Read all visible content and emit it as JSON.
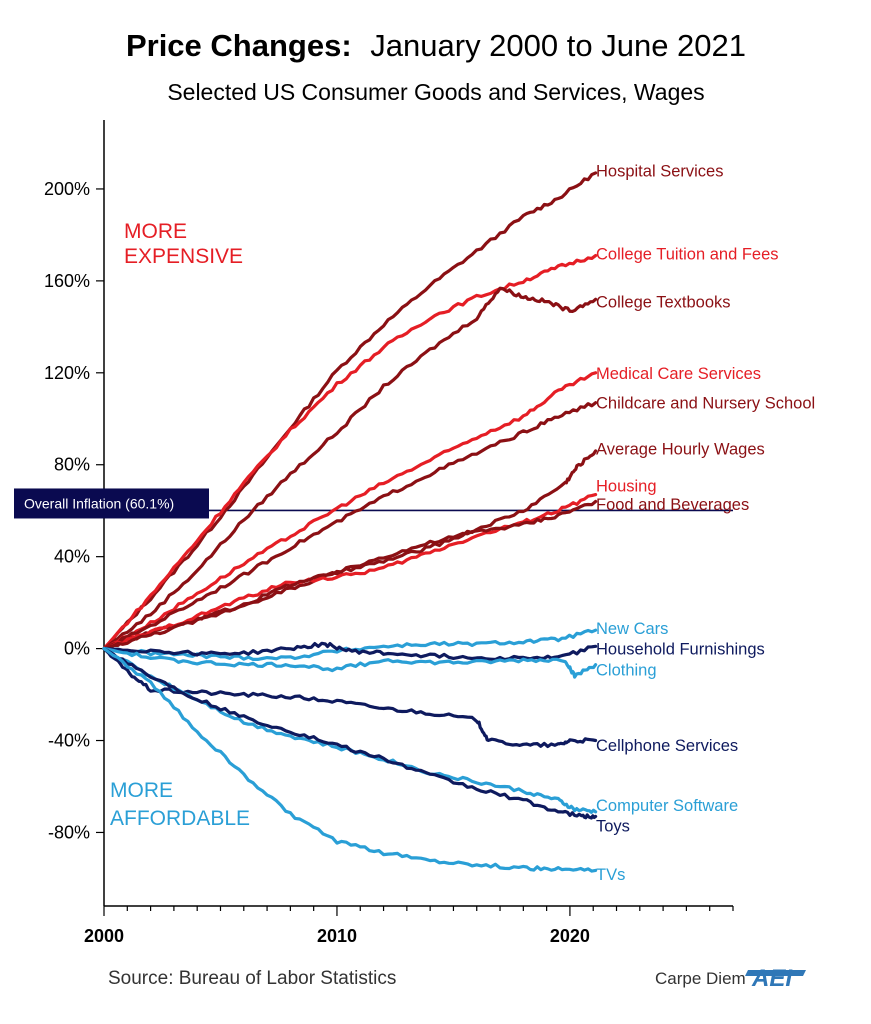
{
  "chart_data": {
    "type": "line",
    "title_bold": "Price Changes:",
    "title_rest": "January 2000 to June 2021",
    "subtitle": "Selected US Consumer Goods and Services, Wages",
    "xlim": [
      2000,
      2027
    ],
    "ylim": [
      -112,
      230
    ],
    "y_ticks": [
      200,
      160,
      120,
      80,
      40,
      0,
      -40,
      -80
    ],
    "y_tick_labels": [
      "200%",
      "160%",
      "120%",
      "80%",
      "40%",
      "0%",
      "-40%",
      "-80%"
    ],
    "x_ticks": [
      2000,
      2010,
      2020
    ],
    "x_tick_labels": [
      "2000",
      "2010",
      "2020"
    ],
    "grid": false,
    "reference_line": {
      "label": "Overall Inflation (60.1%)",
      "value": 60.1,
      "color": "#0a0a50"
    },
    "annotations": {
      "more_expensive": "MORE\nEXPENSIVE",
      "more_affordable": "MORE\nAFFORDABLE"
    },
    "series": [
      {
        "name": "Hospital Services",
        "color": "#8b1014",
        "points": [
          [
            2000,
            0
          ],
          [
            2002,
            22
          ],
          [
            2004,
            45
          ],
          [
            2006,
            70
          ],
          [
            2008,
            96
          ],
          [
            2010,
            121
          ],
          [
            2012,
            141
          ],
          [
            2014,
            158
          ],
          [
            2016,
            173
          ],
          [
            2018,
            188
          ],
          [
            2019.5,
            196
          ],
          [
            2021.1,
            207
          ]
        ]
      },
      {
        "name": "College Tuition and Fees",
        "color": "#e51e25",
        "points": [
          [
            2000,
            0
          ],
          [
            2002,
            23
          ],
          [
            2004,
            47
          ],
          [
            2006,
            72
          ],
          [
            2008,
            95
          ],
          [
            2010,
            115
          ],
          [
            2012,
            131
          ],
          [
            2014,
            144
          ],
          [
            2016,
            153
          ],
          [
            2018,
            160
          ],
          [
            2019.5,
            166
          ],
          [
            2021.1,
            171
          ]
        ]
      },
      {
        "name": "College Textbooks",
        "color": "#8b1014",
        "points": [
          [
            2000,
            0
          ],
          [
            2002,
            15
          ],
          [
            2004,
            34
          ],
          [
            2006,
            56
          ],
          [
            2008,
            76
          ],
          [
            2010,
            94
          ],
          [
            2012,
            114
          ],
          [
            2014,
            130
          ],
          [
            2016,
            144
          ],
          [
            2017,
            157
          ],
          [
            2018,
            153
          ],
          [
            2019,
            151
          ],
          [
            2020,
            147
          ],
          [
            2021.1,
            152
          ]
        ]
      },
      {
        "name": "Medical Care Services",
        "color": "#e51e25",
        "points": [
          [
            2000,
            0
          ],
          [
            2002,
            11
          ],
          [
            2004,
            24
          ],
          [
            2006,
            37
          ],
          [
            2008,
            49
          ],
          [
            2010,
            61
          ],
          [
            2012,
            72
          ],
          [
            2014,
            82
          ],
          [
            2016,
            92
          ],
          [
            2018,
            101
          ],
          [
            2019.5,
            112
          ],
          [
            2021.1,
            120
          ]
        ]
      },
      {
        "name": "Childcare and Nursery School",
        "color": "#8b1014",
        "points": [
          [
            2000,
            0
          ],
          [
            2002,
            10
          ],
          [
            2004,
            21
          ],
          [
            2006,
            32
          ],
          [
            2008,
            44
          ],
          [
            2010,
            55
          ],
          [
            2012,
            66
          ],
          [
            2014,
            76
          ],
          [
            2016,
            85
          ],
          [
            2018,
            94
          ],
          [
            2019.5,
            101
          ],
          [
            2021.1,
            107
          ]
        ]
      },
      {
        "name": "Average Hourly Wages",
        "color": "#8b1014",
        "points": [
          [
            2000,
            0
          ],
          [
            2002,
            7
          ],
          [
            2004,
            13
          ],
          [
            2006,
            19
          ],
          [
            2008,
            26
          ],
          [
            2010,
            33
          ],
          [
            2012,
            38
          ],
          [
            2014,
            44
          ],
          [
            2016,
            52
          ],
          [
            2018,
            60
          ],
          [
            2019.8,
            72
          ],
          [
            2020.3,
            79
          ],
          [
            2021.1,
            86
          ]
        ]
      },
      {
        "name": "Housing",
        "color": "#e51e25",
        "points": [
          [
            2000,
            0
          ],
          [
            2002,
            7
          ],
          [
            2004,
            14
          ],
          [
            2006,
            22
          ],
          [
            2008,
            29
          ],
          [
            2010,
            31
          ],
          [
            2012,
            35
          ],
          [
            2014,
            42
          ],
          [
            2016,
            49
          ],
          [
            2018,
            55
          ],
          [
            2019.5,
            60
          ],
          [
            2021.1,
            67
          ]
        ]
      },
      {
        "name": "Food and Beverages",
        "color": "#8b1014",
        "points": [
          [
            2000,
            0
          ],
          [
            2002,
            6
          ],
          [
            2004,
            12
          ],
          [
            2006,
            19
          ],
          [
            2008,
            28
          ],
          [
            2010,
            33
          ],
          [
            2012,
            40
          ],
          [
            2014,
            46
          ],
          [
            2016,
            51
          ],
          [
            2018,
            54
          ],
          [
            2019.5,
            58
          ],
          [
            2021.1,
            64
          ]
        ]
      },
      {
        "name": "New Cars",
        "color": "#2a9fd6",
        "points": [
          [
            2000,
            0
          ],
          [
            2002,
            -2
          ],
          [
            2004,
            -3
          ],
          [
            2006,
            -4
          ],
          [
            2008,
            -4
          ],
          [
            2010,
            -1
          ],
          [
            2012,
            1
          ],
          [
            2014,
            2
          ],
          [
            2016,
            2
          ],
          [
            2018,
            3
          ],
          [
            2019.5,
            4
          ],
          [
            2021.1,
            8
          ]
        ]
      },
      {
        "name": "Household Furnishings",
        "color": "#0e1a5e",
        "points": [
          [
            2000,
            0
          ],
          [
            2002,
            -1
          ],
          [
            2004,
            -2
          ],
          [
            2006,
            -2
          ],
          [
            2008,
            0
          ],
          [
            2009.5,
            2
          ],
          [
            2010.5,
            -1
          ],
          [
            2012,
            -2
          ],
          [
            2014,
            -3
          ],
          [
            2016,
            -4
          ],
          [
            2018,
            -4
          ],
          [
            2019.5,
            -4
          ],
          [
            2021.1,
            1
          ]
        ]
      },
      {
        "name": "Clothing",
        "color": "#2a9fd6",
        "points": [
          [
            2000,
            0
          ],
          [
            2002,
            -4
          ],
          [
            2004,
            -6
          ],
          [
            2006,
            -7
          ],
          [
            2008,
            -7
          ],
          [
            2010,
            -9
          ],
          [
            2012,
            -5
          ],
          [
            2014,
            -6
          ],
          [
            2016,
            -6
          ],
          [
            2018,
            -5
          ],
          [
            2019.8,
            -5
          ],
          [
            2020.2,
            -12
          ],
          [
            2021.1,
            -7
          ]
        ]
      },
      {
        "name": "Cellphone Services",
        "color": "#0e1a5e",
        "points": [
          [
            2000,
            0
          ],
          [
            2001,
            -10
          ],
          [
            2002,
            -18
          ],
          [
            2004,
            -19
          ],
          [
            2006,
            -20
          ],
          [
            2008,
            -21
          ],
          [
            2010,
            -23
          ],
          [
            2012,
            -26
          ],
          [
            2014,
            -28
          ],
          [
            2016,
            -31
          ],
          [
            2016.5,
            -40
          ],
          [
            2018,
            -42
          ],
          [
            2019.5,
            -42
          ],
          [
            2020,
            -40
          ],
          [
            2021.1,
            -40
          ]
        ]
      },
      {
        "name": "Computer Software",
        "color": "#2a9fd6",
        "points": [
          [
            2000,
            0
          ],
          [
            2002,
            -12
          ],
          [
            2004,
            -22
          ],
          [
            2006,
            -32
          ],
          [
            2008,
            -38
          ],
          [
            2010,
            -43
          ],
          [
            2012,
            -48
          ],
          [
            2014,
            -54
          ],
          [
            2016,
            -58
          ],
          [
            2018,
            -62
          ],
          [
            2019.5,
            -66
          ],
          [
            2020.2,
            -70
          ],
          [
            2021.1,
            -71
          ]
        ]
      },
      {
        "name": "Toys",
        "color": "#0e1a5e",
        "points": [
          [
            2000,
            0
          ],
          [
            2002,
            -12
          ],
          [
            2004,
            -22
          ],
          [
            2006,
            -30
          ],
          [
            2008,
            -36
          ],
          [
            2010,
            -42
          ],
          [
            2012,
            -48
          ],
          [
            2014,
            -55
          ],
          [
            2016,
            -61
          ],
          [
            2018,
            -66
          ],
          [
            2019.5,
            -71
          ],
          [
            2020.5,
            -73
          ],
          [
            2021.1,
            -73
          ]
        ]
      },
      {
        "name": "TVs",
        "color": "#2a9fd6",
        "points": [
          [
            2000,
            0
          ],
          [
            2002,
            -15
          ],
          [
            2004,
            -36
          ],
          [
            2006,
            -55
          ],
          [
            2008,
            -72
          ],
          [
            2010,
            -84
          ],
          [
            2012,
            -89
          ],
          [
            2014,
            -92
          ],
          [
            2016,
            -94
          ],
          [
            2018,
            -95.5
          ],
          [
            2019.5,
            -96
          ],
          [
            2021.1,
            -96.5
          ]
        ]
      }
    ],
    "series_labels": [
      {
        "text": "Hospital Services",
        "color": "#8b1014",
        "y_value": 208
      },
      {
        "text": "College Tuition and Fees",
        "color": "#e51e25",
        "y_value": 172
      },
      {
        "text": "College Textbooks",
        "color": "#8b1014",
        "y_value": 151
      },
      {
        "text": "Medical Care Services",
        "color": "#e51e25",
        "y_value": 120
      },
      {
        "text": "Childcare and Nursery School",
        "color": "#8b1014",
        "y_value": 107
      },
      {
        "text": "Average Hourly Wages",
        "color": "#8b1014",
        "y_value": 87
      },
      {
        "text": "Housing",
        "color": "#e51e25",
        "y_value": 71
      },
      {
        "text": "Food and Beverages",
        "color": "#8b1014",
        "y_value": 63
      },
      {
        "text": "New Cars",
        "color": "#2a9fd6",
        "y_value": 9
      },
      {
        "text": "Household Furnishings",
        "color": "#0e1a5e",
        "y_value": 0
      },
      {
        "text": "Clothing",
        "color": "#2a9fd6",
        "y_value": -9
      },
      {
        "text": "Cellphone Services",
        "color": "#0e1a5e",
        "y_value": -42
      },
      {
        "text": "Computer Software",
        "color": "#2a9fd6",
        "y_value": -68
      },
      {
        "text": "Toys",
        "color": "#0e1a5e",
        "y_value": -77
      },
      {
        "text": "TVs",
        "color": "#2a9fd6",
        "y_value": -98
      }
    ]
  },
  "footer": {
    "source": "Source: Bureau of Labor Statistics",
    "brand": "Carpe Diem",
    "logo_text": "AEI"
  },
  "colors": {
    "annot_expensive": "#e51e25",
    "annot_affordable": "#2a9fd6",
    "axis": "#000000",
    "ref_box": "#0a0a50"
  }
}
